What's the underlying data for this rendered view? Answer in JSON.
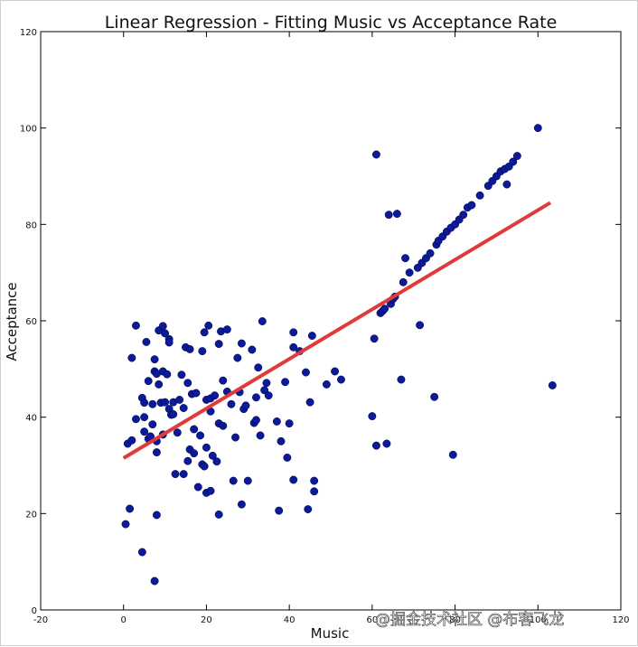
{
  "chart_data": {
    "type": "scatter",
    "title": "Linear Regression - Fitting Music vs Acceptance Rate",
    "xlabel": "Music",
    "ylabel": "Acceptance",
    "xlim": [
      -20,
      120
    ],
    "ylim": [
      0,
      120
    ],
    "xticks": [
      -20,
      0,
      20,
      40,
      60,
      80,
      100,
      120
    ],
    "yticks": [
      0,
      20,
      40,
      60,
      80,
      100,
      120
    ],
    "grid": false,
    "marker_color": "#0a1a9a",
    "line_color": "#e03a3a",
    "fit_line": {
      "x": [
        0,
        103
      ],
      "y": [
        31.5,
        84.5
      ]
    },
    "points": [
      [
        0.5,
        17.8
      ],
      [
        1,
        34.5
      ],
      [
        1.5,
        21
      ],
      [
        2,
        35.2
      ],
      [
        2,
        52.3
      ],
      [
        3,
        59
      ],
      [
        3,
        39.6
      ],
      [
        4.5,
        12
      ],
      [
        4.5,
        44
      ],
      [
        5,
        43
      ],
      [
        5,
        40
      ],
      [
        5,
        37
      ],
      [
        5.5,
        55.6
      ],
      [
        6,
        47.5
      ],
      [
        6,
        35.5
      ],
      [
        6.5,
        36
      ],
      [
        7,
        42.7
      ],
      [
        7,
        38.5
      ],
      [
        7.5,
        52
      ],
      [
        7.5,
        49.5
      ],
      [
        7.5,
        6
      ],
      [
        8,
        49
      ],
      [
        8,
        35
      ],
      [
        8,
        32.7
      ],
      [
        8,
        19.7
      ],
      [
        8.5,
        58
      ],
      [
        8.5,
        46.8
      ],
      [
        9,
        43
      ],
      [
        9.5,
        58.9
      ],
      [
        9.5,
        49.5
      ],
      [
        9.5,
        36.4
      ],
      [
        10,
        57.4
      ],
      [
        10,
        43.1
      ],
      [
        10.5,
        48.9
      ],
      [
        11,
        56.2
      ],
      [
        11,
        55.5
      ],
      [
        11,
        41.7
      ],
      [
        11.5,
        40.5
      ],
      [
        12,
        40.6
      ],
      [
        12,
        43.1
      ],
      [
        12.5,
        28.2
      ],
      [
        13,
        36.8
      ],
      [
        13.5,
        43.6
      ],
      [
        14,
        48.8
      ],
      [
        14.5,
        28.2
      ],
      [
        14.5,
        41.9
      ],
      [
        15,
        54.5
      ],
      [
        15.5,
        30.9
      ],
      [
        15.5,
        47.1
      ],
      [
        16,
        54.1
      ],
      [
        16,
        33.3
      ],
      [
        16.5,
        44.8
      ],
      [
        17,
        37.5
      ],
      [
        17,
        32.5
      ],
      [
        17.5,
        45
      ],
      [
        18,
        25.5
      ],
      [
        18.5,
        36.2
      ],
      [
        19,
        30.2
      ],
      [
        19,
        53.7
      ],
      [
        19.5,
        29.8
      ],
      [
        19.5,
        57.6
      ],
      [
        20,
        43.6
      ],
      [
        20,
        33.7
      ],
      [
        20,
        24.3
      ],
      [
        20.5,
        59
      ],
      [
        21,
        41.2
      ],
      [
        21,
        24.7
      ],
      [
        21,
        43.9
      ],
      [
        21.5,
        32
      ],
      [
        22,
        44.5
      ],
      [
        22.5,
        30.8
      ],
      [
        23,
        55.2
      ],
      [
        23,
        19.8
      ],
      [
        23,
        38.7
      ],
      [
        23.5,
        57.8
      ],
      [
        24,
        47.6
      ],
      [
        24,
        38.2
      ],
      [
        25,
        45.3
      ],
      [
        25,
        58.2
      ],
      [
        26,
        42.7
      ],
      [
        26.5,
        26.8
      ],
      [
        27,
        35.8
      ],
      [
        27.5,
        52.3
      ],
      [
        28,
        45.2
      ],
      [
        28.5,
        55.3
      ],
      [
        28.5,
        21.9
      ],
      [
        29,
        41.7
      ],
      [
        29.5,
        42.4
      ],
      [
        30,
        26.8
      ],
      [
        31,
        54
      ],
      [
        31.5,
        38.8
      ],
      [
        32,
        44.1
      ],
      [
        32,
        39.4
      ],
      [
        32.5,
        50.3
      ],
      [
        33,
        36.2
      ],
      [
        33.5,
        59.9
      ],
      [
        34,
        45.6
      ],
      [
        34.5,
        47.1
      ],
      [
        35,
        44.5
      ],
      [
        37,
        39.1
      ],
      [
        37.5,
        20.6
      ],
      [
        38,
        35
      ],
      [
        39,
        47.3
      ],
      [
        39.5,
        31.6
      ],
      [
        40,
        38.7
      ],
      [
        41,
        27
      ],
      [
        41,
        54.5
      ],
      [
        41,
        57.6
      ],
      [
        42.5,
        53.7
      ],
      [
        44,
        49.3
      ],
      [
        44.5,
        20.9
      ],
      [
        45,
        43.1
      ],
      [
        45.5,
        56.9
      ],
      [
        46,
        26.8
      ],
      [
        46,
        24.6
      ],
      [
        49,
        46.8
      ],
      [
        51,
        49.5
      ],
      [
        52.5,
        47.8
      ],
      [
        60,
        40.2
      ],
      [
        60.5,
        56.3
      ],
      [
        61,
        34.1
      ],
      [
        61,
        94.5
      ],
      [
        62,
        61.6
      ],
      [
        62.5,
        62
      ],
      [
        63,
        62.5
      ],
      [
        63.5,
        34.5
      ],
      [
        64,
        82
      ],
      [
        64.5,
        63.5
      ],
      [
        65,
        64.5
      ],
      [
        65.5,
        65
      ],
      [
        66,
        82.2
      ],
      [
        67,
        47.8
      ],
      [
        67.5,
        68
      ],
      [
        68,
        73
      ],
      [
        69,
        70
      ],
      [
        71,
        71
      ],
      [
        71.5,
        59.1
      ],
      [
        72,
        72
      ],
      [
        73,
        73
      ],
      [
        74,
        74
      ],
      [
        75,
        44.2
      ],
      [
        75.5,
        75.8
      ],
      [
        76,
        76.6
      ],
      [
        77,
        77.5
      ],
      [
        78,
        78.5
      ],
      [
        79,
        79.3
      ],
      [
        79.5,
        32.2
      ],
      [
        80,
        80
      ],
      [
        81,
        81
      ],
      [
        82,
        82
      ],
      [
        83,
        83.5
      ],
      [
        84,
        84
      ],
      [
        86,
        86
      ],
      [
        88,
        88
      ],
      [
        89,
        89
      ],
      [
        90,
        90
      ],
      [
        91,
        91
      ],
      [
        92,
        91.5
      ],
      [
        92.5,
        88.3
      ],
      [
        93,
        92
      ],
      [
        94,
        93
      ],
      [
        95,
        94.2
      ],
      [
        100,
        100
      ],
      [
        103.5,
        46.6
      ]
    ]
  },
  "watermark": "@掘金技术社区 @布客飞龙"
}
